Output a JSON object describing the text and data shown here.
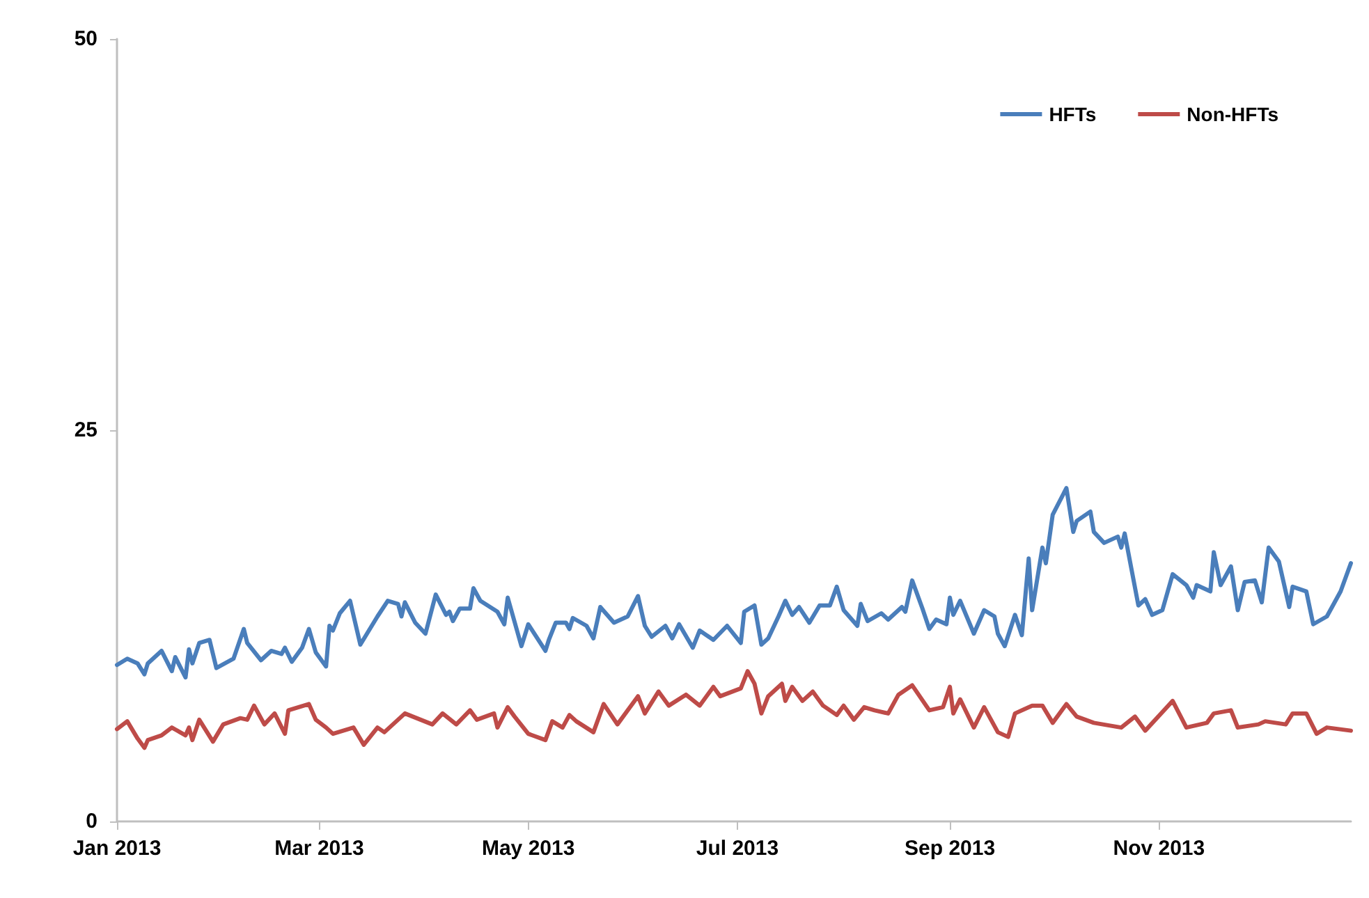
{
  "chart_data": {
    "type": "line",
    "xlim": [
      "2013-01-01",
      "2013-12-27"
    ],
    "xticks": [
      {
        "value": "2013-01-01",
        "label": "Jan 2013"
      },
      {
        "value": "2013-03-01",
        "label": "Mar 2013"
      },
      {
        "value": "2013-05-01",
        "label": "May 2013"
      },
      {
        "value": "2013-07-01",
        "label": "Jul 2013"
      },
      {
        "value": "2013-09-01",
        "label": "Sep 2013"
      },
      {
        "value": "2013-11-01",
        "label": "Nov 2013"
      }
    ],
    "ylim": [
      0,
      50
    ],
    "yticks": [
      0,
      25,
      50
    ],
    "grid": false,
    "legend": "top right",
    "marker": "none",
    "line_style": "solid",
    "series": [
      {
        "name": "HFTs",
        "color": "#4a7ebb",
        "x": [
          "2013-01-01",
          "2013-01-04",
          "2013-01-07",
          "2013-01-09",
          "2013-01-10",
          "2013-01-14",
          "2013-01-17",
          "2013-01-18",
          "2013-01-21",
          "2013-01-22",
          "2013-01-23",
          "2013-01-25",
          "2013-01-28",
          "2013-01-30",
          "2013-02-04",
          "2013-02-07",
          "2013-02-08",
          "2013-02-12",
          "2013-02-15",
          "2013-02-18",
          "2013-02-19",
          "2013-02-21",
          "2013-02-24",
          "2013-02-26",
          "2013-02-28",
          "2013-03-03",
          "2013-03-04",
          "2013-03-05",
          "2013-03-07",
          "2013-03-10",
          "2013-03-13",
          "2013-03-18",
          "2013-03-21",
          "2013-03-24",
          "2013-03-25",
          "2013-03-26",
          "2013-03-29",
          "2013-04-01",
          "2013-04-04",
          "2013-04-07",
          "2013-04-08",
          "2013-04-09",
          "2013-04-11",
          "2013-04-14",
          "2013-04-15",
          "2013-04-17",
          "2013-04-22",
          "2013-04-24",
          "2013-04-25",
          "2013-04-29",
          "2013-05-01",
          "2013-05-06",
          "2013-05-07",
          "2013-05-09",
          "2013-05-12",
          "2013-05-13",
          "2013-05-14",
          "2013-05-18",
          "2013-05-20",
          "2013-05-22",
          "2013-05-26",
          "2013-05-30",
          "2013-06-02",
          "2013-06-04",
          "2013-06-06",
          "2013-06-10",
          "2013-06-12",
          "2013-06-14",
          "2013-06-18",
          "2013-06-20",
          "2013-06-24",
          "2013-06-28",
          "2013-07-02",
          "2013-07-03",
          "2013-07-06",
          "2013-07-08",
          "2013-07-10",
          "2013-07-13",
          "2013-07-15",
          "2013-07-17",
          "2013-07-19",
          "2013-07-22",
          "2013-07-25",
          "2013-07-28",
          "2013-07-30",
          "2013-08-01",
          "2013-08-05",
          "2013-08-06",
          "2013-08-08",
          "2013-08-12",
          "2013-08-14",
          "2013-08-18",
          "2013-08-19",
          "2013-08-21",
          "2013-08-24",
          "2013-08-26",
          "2013-08-28",
          "2013-08-31",
          "2013-09-01",
          "2013-09-02",
          "2013-09-04",
          "2013-09-08",
          "2013-09-11",
          "2013-09-14",
          "2013-09-15",
          "2013-09-17",
          "2013-09-20",
          "2013-09-22",
          "2013-09-24",
          "2013-09-25",
          "2013-09-28",
          "2013-09-29",
          "2013-10-01",
          "2013-10-05",
          "2013-10-07",
          "2013-10-08",
          "2013-10-12",
          "2013-10-13",
          "2013-10-16",
          "2013-10-20",
          "2013-10-21",
          "2013-10-22",
          "2013-10-26",
          "2013-10-28",
          "2013-10-30",
          "2013-11-02",
          "2013-11-05",
          "2013-11-09",
          "2013-11-11",
          "2013-11-12",
          "2013-11-16",
          "2013-11-17",
          "2013-11-19",
          "2013-11-22",
          "2013-11-24",
          "2013-11-26",
          "2013-11-29",
          "2013-12-01",
          "2013-12-03",
          "2013-12-06",
          "2013-12-09",
          "2013-12-10",
          "2013-12-14",
          "2013-12-16",
          "2013-12-20",
          "2013-12-24",
          "2013-12-27"
        ],
        "values": [
          10.0,
          10.4,
          10.1,
          9.4,
          10.1,
          10.9,
          9.6,
          10.5,
          9.2,
          11.0,
          10.1,
          11.4,
          11.6,
          9.8,
          10.4,
          12.3,
          11.4,
          10.3,
          10.9,
          10.7,
          11.1,
          10.2,
          11.1,
          12.3,
          10.8,
          9.9,
          12.5,
          12.2,
          13.3,
          14.1,
          11.3,
          13.1,
          14.1,
          13.9,
          13.1,
          14.0,
          12.7,
          12.0,
          14.5,
          13.2,
          13.4,
          12.8,
          13.6,
          13.6,
          14.9,
          14.1,
          13.4,
          12.6,
          14.3,
          11.2,
          12.6,
          10.9,
          11.6,
          12.7,
          12.7,
          12.3,
          13.0,
          12.5,
          11.7,
          13.7,
          12.7,
          13.1,
          14.4,
          12.5,
          11.8,
          12.5,
          11.7,
          12.6,
          11.1,
          12.2,
          11.6,
          12.5,
          11.4,
          13.4,
          13.8,
          11.3,
          11.7,
          13.1,
          14.1,
          13.2,
          13.7,
          12.7,
          13.8,
          13.8,
          15.0,
          13.5,
          12.5,
          13.9,
          12.8,
          13.3,
          12.9,
          13.7,
          13.4,
          15.4,
          13.6,
          12.3,
          12.9,
          12.6,
          14.3,
          13.2,
          14.1,
          12.0,
          13.5,
          13.1,
          12.0,
          11.2,
          13.2,
          11.9,
          16.8,
          13.5,
          17.5,
          16.5,
          19.6,
          21.3,
          18.5,
          19.2,
          19.8,
          18.5,
          17.8,
          18.2,
          17.5,
          18.4,
          13.8,
          14.2,
          13.2,
          13.5,
          15.8,
          15.1,
          14.3,
          15.1,
          14.7,
          17.2,
          15.1,
          16.3,
          13.5,
          15.3,
          15.4,
          14.0,
          17.5,
          16.6,
          13.7,
          15.0,
          14.7,
          12.6,
          13.1,
          14.7,
          16.5
        ]
      },
      {
        "name": "Non-HFTs",
        "color": "#be4b48",
        "x": [
          "2013-01-01",
          "2013-01-04",
          "2013-01-07",
          "2013-01-09",
          "2013-01-10",
          "2013-01-14",
          "2013-01-17",
          "2013-01-21",
          "2013-01-22",
          "2013-01-23",
          "2013-01-25",
          "2013-01-29",
          "2013-02-01",
          "2013-02-06",
          "2013-02-08",
          "2013-02-10",
          "2013-02-13",
          "2013-02-16",
          "2013-02-19",
          "2013-02-20",
          "2013-02-26",
          "2013-02-28",
          "2013-03-03",
          "2013-03-05",
          "2013-03-11",
          "2013-03-14",
          "2013-03-18",
          "2013-03-20",
          "2013-03-26",
          "2013-04-03",
          "2013-04-06",
          "2013-04-10",
          "2013-04-14",
          "2013-04-16",
          "2013-04-21",
          "2013-04-22",
          "2013-04-25",
          "2013-04-27",
          "2013-05-01",
          "2013-05-06",
          "2013-05-08",
          "2013-05-11",
          "2013-05-13",
          "2013-05-15",
          "2013-05-20",
          "2013-05-23",
          "2013-05-27",
          "2013-06-02",
          "2013-06-04",
          "2013-06-08",
          "2013-06-11",
          "2013-06-16",
          "2013-06-20",
          "2013-06-24",
          "2013-06-26",
          "2013-07-02",
          "2013-07-04",
          "2013-07-06",
          "2013-07-08",
          "2013-07-10",
          "2013-07-14",
          "2013-07-15",
          "2013-07-17",
          "2013-07-20",
          "2013-07-23",
          "2013-07-26",
          "2013-07-30",
          "2013-08-01",
          "2013-08-04",
          "2013-08-07",
          "2013-08-10",
          "2013-08-14",
          "2013-08-17",
          "2013-08-21",
          "2013-08-26",
          "2013-08-30",
          "2013-09-01",
          "2013-09-02",
          "2013-09-04",
          "2013-09-08",
          "2013-09-11",
          "2013-09-15",
          "2013-09-18",
          "2013-09-20",
          "2013-09-25",
          "2013-09-28",
          "2013-10-01",
          "2013-10-05",
          "2013-10-08",
          "2013-10-13",
          "2013-10-21",
          "2013-10-25",
          "2013-10-28",
          "2013-11-05",
          "2013-11-09",
          "2013-11-15",
          "2013-11-17",
          "2013-11-22",
          "2013-11-24",
          "2013-11-30",
          "2013-12-02",
          "2013-12-08",
          "2013-12-10",
          "2013-12-14",
          "2013-12-17",
          "2013-12-20",
          "2013-12-27"
        ],
        "values": [
          5.9,
          6.4,
          5.3,
          4.7,
          5.2,
          5.5,
          6.0,
          5.5,
          6.0,
          5.2,
          6.5,
          5.1,
          6.2,
          6.6,
          6.5,
          7.4,
          6.2,
          6.9,
          5.6,
          7.1,
          7.5,
          6.5,
          6.0,
          5.6,
          6.0,
          4.9,
          6.0,
          5.7,
          6.9,
          6.2,
          6.9,
          6.2,
          7.1,
          6.5,
          6.9,
          6.0,
          7.3,
          6.7,
          5.6,
          5.2,
          6.4,
          6.0,
          6.8,
          6.4,
          5.7,
          7.5,
          6.2,
          8.0,
          6.9,
          8.3,
          7.4,
          8.1,
          7.4,
          8.6,
          8.0,
          8.5,
          9.6,
          8.8,
          6.9,
          8.0,
          8.8,
          7.7,
          8.6,
          7.7,
          8.3,
          7.4,
          6.8,
          7.4,
          6.5,
          7.3,
          7.1,
          6.9,
          8.1,
          8.7,
          7.1,
          7.3,
          8.6,
          6.9,
          7.8,
          6.0,
          7.3,
          5.7,
          5.4,
          6.9,
          7.4,
          7.4,
          6.3,
          7.5,
          6.7,
          6.3,
          6.0,
          6.7,
          5.8,
          7.7,
          6.0,
          6.3,
          6.9,
          7.1,
          6.0,
          6.2,
          6.4,
          6.2,
          6.9,
          6.9,
          5.6,
          6.0,
          5.8
        ]
      }
    ]
  }
}
